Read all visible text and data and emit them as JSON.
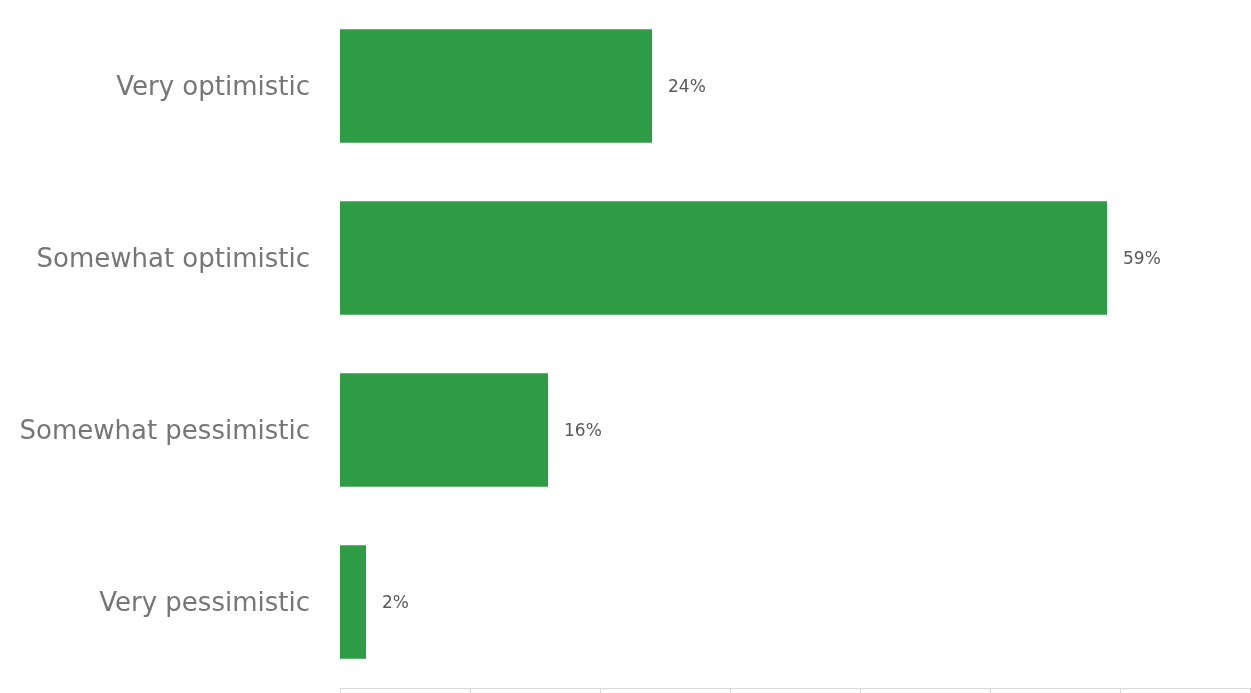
{
  "chart_data": {
    "type": "bar",
    "orientation": "horizontal",
    "categories": [
      "Very optimistic",
      "Somewhat optimistic",
      "Somewhat pessimistic",
      "Very pessimistic"
    ],
    "values": [
      24,
      59,
      16,
      2
    ],
    "color": "#2e9c44",
    "value_labels": [
      "24%",
      "59%",
      "16%",
      "2%"
    ],
    "xlim": [
      0,
      70
    ],
    "xticks": [
      {
        "value": 0,
        "label": null
      },
      {
        "value": 10,
        "label": null
      },
      {
        "value": 20,
        "label": null
      },
      {
        "value": 30,
        "label": null
      },
      {
        "value": 40,
        "label": null
      },
      {
        "value": 50,
        "label": null
      },
      {
        "value": 60,
        "label": null
      },
      {
        "value": 70,
        "label": null
      }
    ],
    "tick_labels": "y",
    "grid": false
  }
}
